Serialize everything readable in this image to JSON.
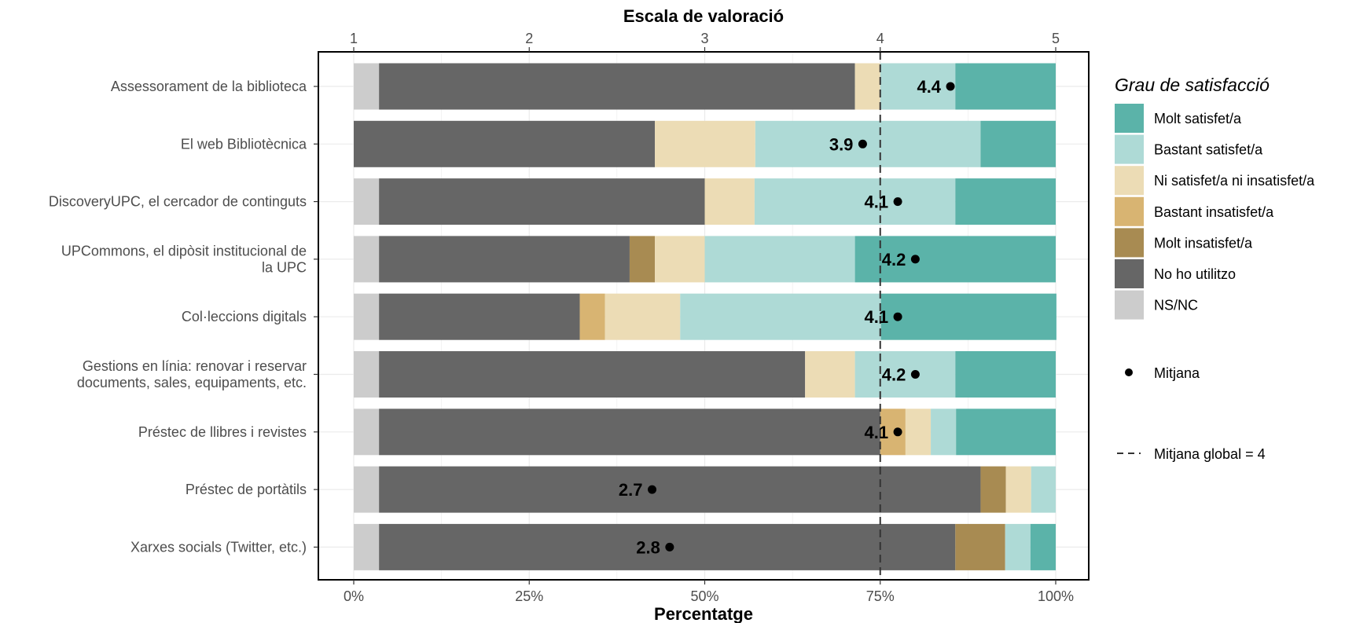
{
  "chart_data": {
    "type": "bar",
    "orientation": "horizontal-stacked",
    "title": "",
    "xlabel": "Percentatge",
    "x2label": "Escala de valoració",
    "xlim": [
      0,
      100
    ],
    "x_ticks": [
      "0%",
      "25%",
      "50%",
      "75%",
      "100%"
    ],
    "x2_ticks": [
      "1",
      "2",
      "3",
      "4",
      "5"
    ],
    "x2lim": [
      1,
      5
    ],
    "grid": true,
    "categories": [
      "Assessorament de la biblioteca",
      "El web Bibliotècnica",
      "DiscoveryUPC, el cercador de continguts",
      "UPCommons, el dipòsit institucional de la UPC",
      "Col·leccions digitals",
      "Gestions en línia: renovar i reservar documents, sales, equipaments, etc.",
      "Préstec de llibres i revistes",
      "Préstec de portàtils",
      "Xarxes socials (Twitter, etc.)"
    ],
    "category_lines": [
      [
        "Assessorament de la biblioteca"
      ],
      [
        "El web Bibliotècnica"
      ],
      [
        "DiscoveryUPC, el cercador de continguts"
      ],
      [
        "UPCommons, el dipòsit institucional de",
        "la UPC"
      ],
      [
        "Col·leccions digitals"
      ],
      [
        "Gestions en línia: renovar i reservar",
        "documents, sales, equipaments, etc."
      ],
      [
        "Préstec de llibres i revistes"
      ],
      [
        "Préstec de portàtils"
      ],
      [
        "Xarxes socials (Twitter, etc.)"
      ]
    ],
    "series": [
      {
        "name": "NS/NC",
        "color": "#cccccc",
        "values": [
          3.6,
          0,
          3.6,
          3.6,
          3.6,
          3.6,
          3.6,
          3.6,
          3.6
        ]
      },
      {
        "name": "No ho utilitzo",
        "color": "#666666",
        "values": [
          67.8,
          42.9,
          46.4,
          35.7,
          28.6,
          60.7,
          71.4,
          85.7,
          82.1
        ]
      },
      {
        "name": "Molt insatisfet/a",
        "color": "#a88b52",
        "values": [
          0,
          0,
          0,
          3.6,
          0,
          0,
          0,
          3.6,
          7.1
        ]
      },
      {
        "name": "Bastant insatisfet/a",
        "color": "#d8b472",
        "values": [
          0,
          0,
          0,
          0,
          3.6,
          0,
          3.6,
          0,
          0
        ]
      },
      {
        "name": "Ni satisfet/a ni insatisfet/a",
        "color": "#ecdcb5",
        "values": [
          3.6,
          14.3,
          7.1,
          7.1,
          10.7,
          7.1,
          3.6,
          3.6,
          0
        ]
      },
      {
        "name": "Bastant satisfet/a",
        "color": "#aedad6",
        "values": [
          10.7,
          32.1,
          28.6,
          21.4,
          28.6,
          14.3,
          3.6,
          3.5,
          3.6
        ]
      },
      {
        "name": "Molt satisfet/a",
        "color": "#5bb3a9",
        "values": [
          14.3,
          10.7,
          14.3,
          28.6,
          25.0,
          14.3,
          14.2,
          0,
          3.6
        ]
      }
    ],
    "means": [
      4.4,
      3.9,
      4.1,
      4.2,
      4.1,
      4.2,
      4.1,
      2.7,
      2.8
    ],
    "mean_labels": [
      "4.4",
      "3.9",
      "4.1",
      "4.2",
      "4.1",
      "4.2",
      "4.1",
      "2.7",
      "2.8"
    ],
    "global_mean": 4,
    "legend": {
      "position": "right",
      "title": "Grau de satisfacció",
      "items": [
        "Molt satisfet/a",
        "Bastant satisfet/a",
        "Ni satisfet/a ni insatisfet/a",
        "Bastant insatisfet/a",
        "Molt insatisfet/a",
        "No ho utilitzo",
        "NS/NC"
      ],
      "mean_label": "Mitjana",
      "global_mean_label": "Mitjana global =  4"
    }
  }
}
